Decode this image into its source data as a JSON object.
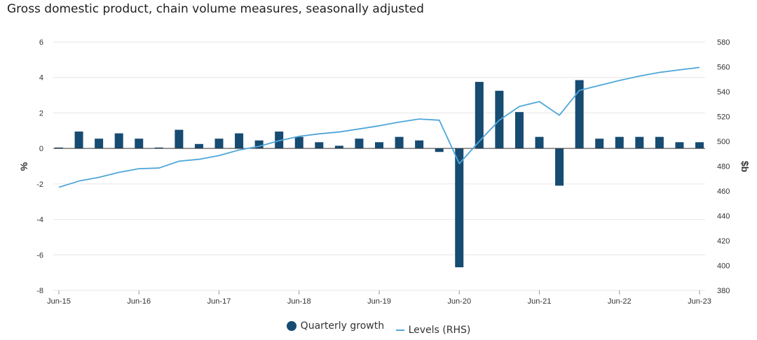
{
  "title": "Gross domestic product, chain volume measures, seasonally adjusted",
  "legend": {
    "quarterly_growth": "Quarterly growth",
    "levels": "Levels (RHS)"
  },
  "colors": {
    "bars": "#164b72",
    "line": "#4ea6d9",
    "grid": "#e6e6e6",
    "zero": "#333333"
  },
  "chart_data": {
    "type": "bar",
    "title": "Gross domestic product, chain volume measures, seasonally adjusted",
    "ylabel_left": "%",
    "ylabel_right": "$b",
    "ylim_left": [
      -8,
      6
    ],
    "ylim_right": [
      380,
      580
    ],
    "yticks_left": [
      "6",
      "4",
      "2",
      "0",
      "-2",
      "-4",
      "-6",
      "-8"
    ],
    "yticks_right": [
      "580",
      "560",
      "540",
      "520",
      "500",
      "480",
      "460",
      "440",
      "420",
      "400",
      "380"
    ],
    "x_tick_labels": [
      "Jun-15",
      "Jun-16",
      "Jun-17",
      "Jun-18",
      "Jun-19",
      "Jun-20",
      "Jun-21",
      "Jun-22",
      "Jun-23"
    ],
    "categories": [
      "Jun-15",
      "Sep-15",
      "Dec-15",
      "Mar-16",
      "Jun-16",
      "Sep-16",
      "Dec-16",
      "Mar-17",
      "Jun-17",
      "Sep-17",
      "Dec-17",
      "Mar-18",
      "Jun-18",
      "Sep-18",
      "Dec-18",
      "Mar-19",
      "Jun-19",
      "Sep-19",
      "Dec-19",
      "Mar-20",
      "Jun-20",
      "Sep-20",
      "Dec-20",
      "Mar-21",
      "Jun-21",
      "Sep-21",
      "Dec-21",
      "Mar-22",
      "Jun-22",
      "Sep-22",
      "Dec-22",
      "Mar-23",
      "Jun-23"
    ],
    "series": [
      {
        "name": "Quarterly growth",
        "type": "bar",
        "axis": "left",
        "values": [
          0.05,
          0.95,
          0.55,
          0.85,
          0.55,
          0.05,
          1.05,
          0.25,
          0.55,
          0.85,
          0.45,
          0.95,
          0.65,
          0.35,
          0.15,
          0.55,
          0.35,
          0.65,
          0.45,
          -0.2,
          -6.7,
          3.75,
          3.25,
          2.05,
          0.65,
          -2.1,
          3.85,
          0.55,
          0.65,
          0.65,
          0.65,
          0.35,
          0.35
        ]
      },
      {
        "name": "Levels (RHS)",
        "type": "line",
        "axis": "right",
        "values": [
          463,
          468,
          471,
          475,
          478,
          478.5,
          484,
          485.5,
          488.5,
          493,
          496,
          500.5,
          504,
          506,
          507.5,
          510,
          512.5,
          515.5,
          518,
          517,
          482,
          500,
          517,
          528,
          532,
          521,
          541,
          545,
          549,
          552.5,
          555.5,
          557.5,
          559.5
        ]
      }
    ],
    "grid": true,
    "legend_position": "bottom"
  }
}
